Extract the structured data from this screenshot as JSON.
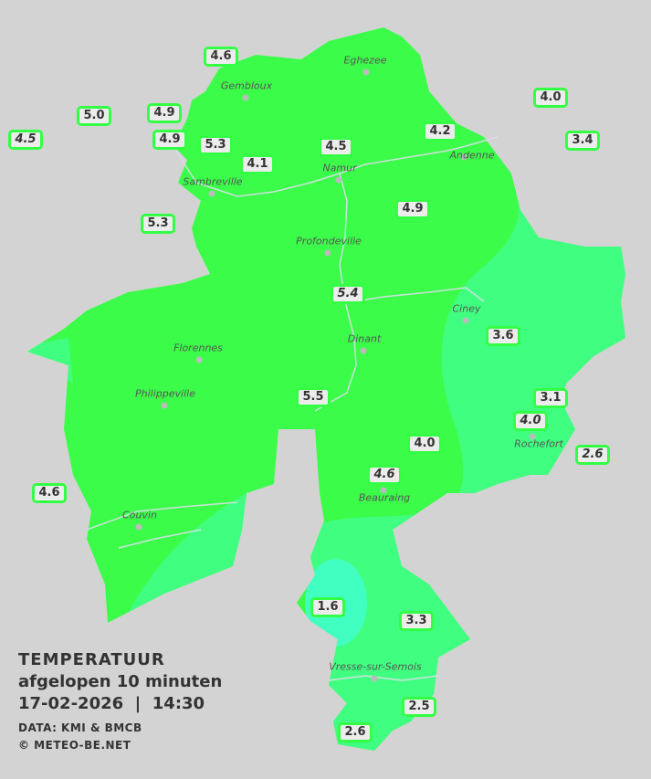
{
  "title": "TEMPERATUUR",
  "subtitle": "afgelopen 10 minuten",
  "datetime": "17-02-2026  |  14:30",
  "source": "DATA: KMI & BMCB",
  "copyright": "© METEO-BE.NET",
  "colors": {
    "background": "#d3d3d3",
    "temp_4_6": "#3cfc4a",
    "temp_2_4": "#40ff80",
    "temp_0_2": "#40ffc0",
    "label_border": "#33ff44"
  },
  "cities": [
    "Eghezee",
    "Gembloux",
    "Andenne",
    "Namur",
    "Sambreville",
    "Profondeville",
    "Ciney",
    "Dinant",
    "Florennes",
    "Philippeville",
    "Rochefort",
    "Beauraing",
    "Couvin",
    "Vresse-sur-Semois"
  ],
  "stations": [
    {
      "value": "4.6",
      "italic": false
    },
    {
      "value": "4.9",
      "italic": false
    },
    {
      "value": "5.0",
      "italic": false
    },
    {
      "value": "4.5",
      "italic": true
    },
    {
      "value": "4.9",
      "italic": false
    },
    {
      "value": "5.3",
      "italic": false
    },
    {
      "value": "4.1",
      "italic": false
    },
    {
      "value": "4.5",
      "italic": false
    },
    {
      "value": "4.2",
      "italic": false
    },
    {
      "value": "4.0",
      "italic": false
    },
    {
      "value": "3.4",
      "italic": false
    },
    {
      "value": "5.3",
      "italic": false
    },
    {
      "value": "4.9",
      "italic": false
    },
    {
      "value": "5.4",
      "italic": true
    },
    {
      "value": "3.6",
      "italic": false
    },
    {
      "value": "5.5",
      "italic": false
    },
    {
      "value": "3.1",
      "italic": false
    },
    {
      "value": "4.0",
      "italic": true
    },
    {
      "value": "4.0",
      "italic": false
    },
    {
      "value": "2.6",
      "italic": true
    },
    {
      "value": "4.6",
      "italic": true
    },
    {
      "value": "4.6",
      "italic": false
    },
    {
      "value": "1.6",
      "italic": false
    },
    {
      "value": "3.3",
      "italic": false
    },
    {
      "value": "2.5",
      "italic": false
    },
    {
      "value": "2.6",
      "italic": false
    }
  ]
}
